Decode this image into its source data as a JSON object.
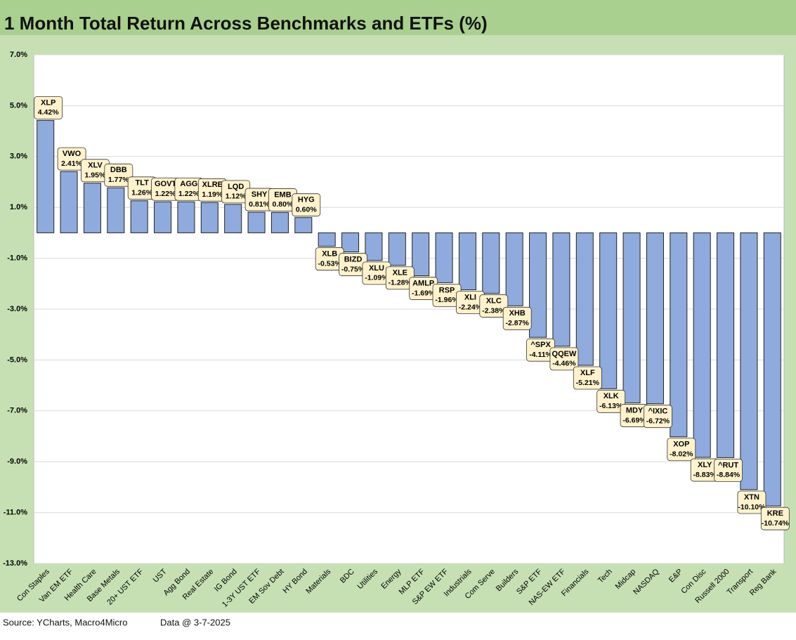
{
  "chart_data": {
    "type": "bar",
    "title": "1 Month Total Return Across Benchmarks and ETFs (%)",
    "source": "Source: YCharts, Macro4Micro",
    "date_note": "Data @ 3-7-2025",
    "categories": [
      "Con Staples",
      "Van EM ETF",
      "Health Care",
      "Base Metals",
      "20+ UST ETF",
      "UST",
      "Agg Bond",
      "Real Estate",
      "IG Bond",
      "1-3Y UST ETF",
      "EM Sov Debt",
      "HY Bond",
      "Materials",
      "BDC",
      "Utilities",
      "Energy",
      "MLP ETF",
      "S&P EW ETF",
      "Industrials",
      "Com Serve",
      "Builders",
      "S&P ETF",
      "NAS-EW ETF",
      "Financials",
      "Tech",
      "Midcap",
      "NASDAQ",
      "E&P",
      "Con Disc",
      "Russell 2000",
      "Transport",
      "Reg Bank"
    ],
    "tickers": [
      "XLP",
      "VWO",
      "XLV",
      "DBB",
      "TLT",
      "GOVT",
      "AGG",
      "XLRE",
      "LQD",
      "SHY",
      "EMB",
      "HYG",
      "XLB",
      "BIZD",
      "XLU",
      "XLE",
      "AMLP",
      "RSP",
      "XLI",
      "XLC",
      "XHB",
      "^SPX",
      "QQEW",
      "XLF",
      "XLK",
      "MDY",
      "^IXIC",
      "XOP",
      "XLY",
      "^RUT",
      "XTN",
      "KRE"
    ],
    "values": [
      4.42,
      2.41,
      1.95,
      1.77,
      1.26,
      1.22,
      1.22,
      1.19,
      1.12,
      0.81,
      0.8,
      0.6,
      -0.53,
      -0.75,
      -1.09,
      -1.28,
      -1.69,
      -1.96,
      -2.24,
      -2.38,
      -2.87,
      -4.11,
      -4.46,
      -5.21,
      -6.13,
      -6.69,
      -6.72,
      -8.02,
      -8.83,
      -8.84,
      -10.1,
      -10.74
    ],
    "value_labels": [
      "4.42%",
      "2.41%",
      "1.95%",
      "1.77%",
      "1.26%",
      "1.22%",
      "1.22%",
      "1.19%",
      "1.12%",
      "0.81%",
      "0.80%",
      "0.60%",
      "-0.53%",
      "-0.75%",
      "-1.09%",
      "-1.28%",
      "-1.69%",
      "-1.96%",
      "-2.24%",
      "-2.38%",
      "-2.87%",
      "-4.11%",
      "-4.46%",
      "-5.21%",
      "-6.13%",
      "-6.69%",
      "-6.72%",
      "-8.02%",
      "-8.83%",
      "-8.84%",
      "-10.10%",
      "-10.74%"
    ],
    "color": "#8faadc",
    "ylim": [
      -13,
      7
    ],
    "yticks": [
      {
        "value": -13,
        "label": "-13.0%"
      },
      {
        "value": -11,
        "label": "-11.0%"
      },
      {
        "value": -9,
        "label": "-9.0%"
      },
      {
        "value": -7,
        "label": "-7.0%"
      },
      {
        "value": -5,
        "label": "-5.0%"
      },
      {
        "value": -3,
        "label": "-3.0%"
      },
      {
        "value": -1,
        "label": "-1.0%"
      },
      {
        "value": 1,
        "label": "1.0%"
      },
      {
        "value": 3,
        "label": "3.0%"
      },
      {
        "value": 5,
        "label": "5.0%"
      },
      {
        "value": 7,
        "label": "7.0%"
      }
    ],
    "grid": true
  }
}
